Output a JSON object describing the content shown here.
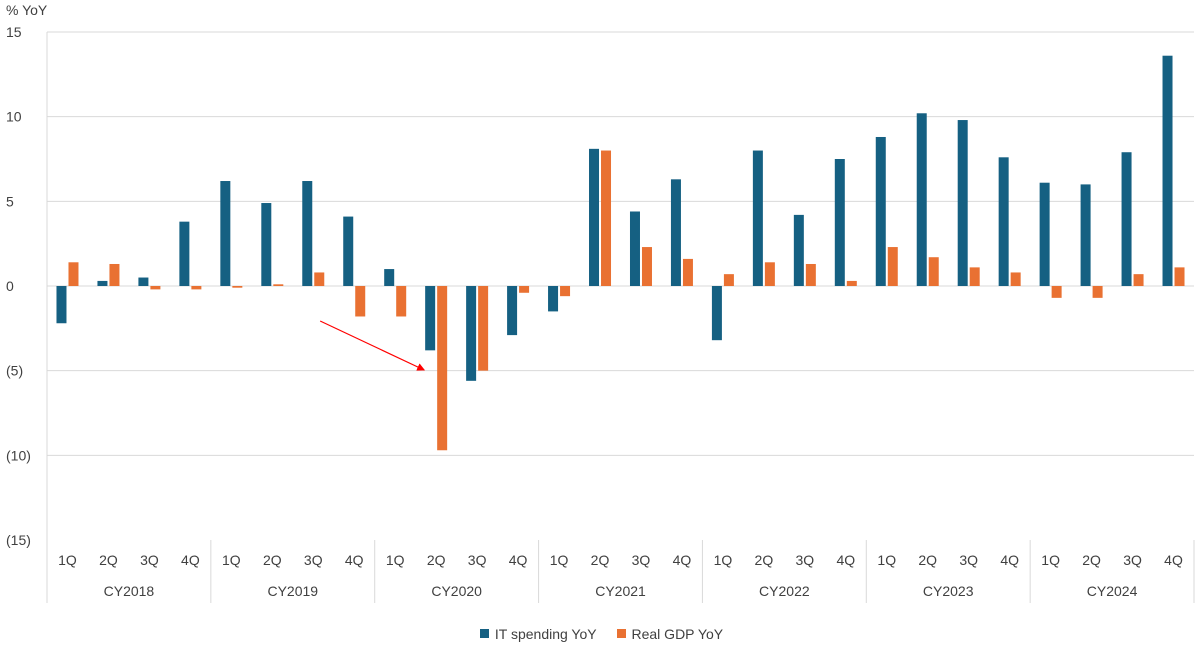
{
  "chart_data": {
    "type": "bar",
    "ylabel": "% YoY",
    "ylim": [
      -15,
      15
    ],
    "yticks": [
      15,
      10,
      5,
      0,
      -5,
      -10,
      -15
    ],
    "ytick_labels": [
      "15",
      "10",
      "5",
      "0",
      "(5)",
      "(10)",
      "(15)"
    ],
    "grid": true,
    "legend_position": "bottom-center",
    "groups": [
      {
        "label": "CY2018",
        "quarters": [
          "1Q",
          "2Q",
          "3Q",
          "4Q"
        ]
      },
      {
        "label": "CY2019",
        "quarters": [
          "1Q",
          "2Q",
          "3Q",
          "4Q"
        ]
      },
      {
        "label": "CY2020",
        "quarters": [
          "1Q",
          "2Q",
          "3Q",
          "4Q"
        ]
      },
      {
        "label": "CY2021",
        "quarters": [
          "1Q",
          "2Q",
          "3Q",
          "4Q"
        ]
      },
      {
        "label": "CY2022",
        "quarters": [
          "1Q",
          "2Q",
          "3Q",
          "4Q"
        ]
      },
      {
        "label": "CY2023",
        "quarters": [
          "1Q",
          "2Q",
          "3Q",
          "4Q"
        ]
      },
      {
        "label": "CY2024",
        "quarters": [
          "1Q",
          "2Q",
          "3Q",
          "4Q"
        ]
      }
    ],
    "series": [
      {
        "name": "IT spending YoY",
        "color": "#156082",
        "values": [
          -2.2,
          0.3,
          0.5,
          3.8,
          6.2,
          4.9,
          6.2,
          4.1,
          1.0,
          -3.8,
          -5.6,
          -2.9,
          -1.5,
          8.1,
          4.4,
          6.3,
          -3.2,
          8.0,
          4.2,
          7.5,
          8.8,
          10.2,
          9.8,
          7.6,
          6.1,
          6.0,
          7.9,
          13.6
        ]
      },
      {
        "name": "Real GDP YoY",
        "color": "#E97132",
        "values": [
          1.4,
          1.3,
          -0.2,
          -0.2,
          -0.1,
          0.1,
          0.8,
          -1.8,
          -1.8,
          -9.7,
          -5.0,
          -0.4,
          -0.6,
          8.0,
          2.3,
          1.6,
          0.7,
          1.4,
          1.3,
          0.3,
          2.3,
          1.7,
          1.1,
          0.8,
          -0.7,
          -0.7,
          0.7,
          1.1
        ]
      }
    ],
    "annotations": [
      {
        "type": "arrow",
        "color": "#FF0000",
        "points_to": "CY2020 2Q Real GDP YoY"
      }
    ]
  }
}
